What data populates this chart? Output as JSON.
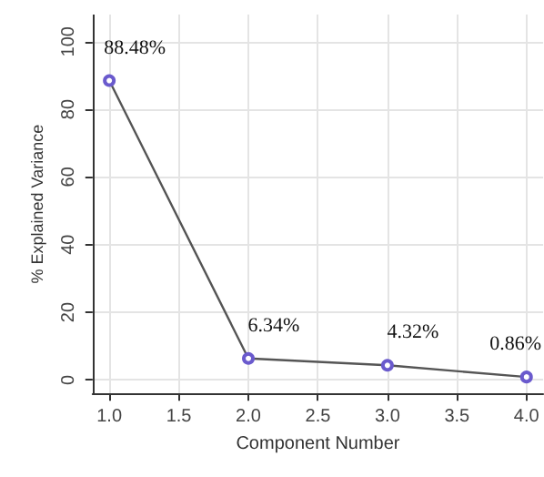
{
  "chart_data": {
    "type": "line",
    "xlabel": "Component Number",
    "ylabel": "% Explained Variance",
    "x": [
      1,
      2,
      3,
      4
    ],
    "series": [
      {
        "color": "#555555",
        "values": [
          88.48,
          6.34,
          4.32,
          0.86
        ],
        "value_labels": [
          "88.48%",
          "6.34%",
          "4.32%",
          "0.86%"
        ]
      }
    ],
    "xlim": [
      0.88,
      4.12
    ],
    "ylim": [
      -4,
      108
    ],
    "xticks": [
      {
        "value": 1,
        "label": "1.0"
      },
      {
        "value": 1.5,
        "label": "1.5"
      },
      {
        "value": 2,
        "label": "2.0"
      },
      {
        "value": 2.5,
        "label": "2.5"
      },
      {
        "value": 3,
        "label": "3.0"
      },
      {
        "value": 3.5,
        "label": "3.5"
      },
      {
        "value": 4,
        "label": "4.0"
      }
    ],
    "yticks": [
      0,
      20,
      40,
      60,
      80,
      100
    ],
    "grid": true,
    "marker": "circle",
    "line_style": "solid"
  }
}
